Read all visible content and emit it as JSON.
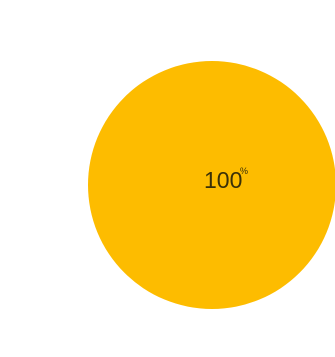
{
  "chart_data": {
    "type": "pie",
    "slices": [
      {
        "label": "100%",
        "value": 100,
        "color": "#FDBC00"
      }
    ],
    "title": "",
    "legend": "none"
  },
  "labels": {
    "slice_value": "100",
    "slice_unit": "%"
  }
}
